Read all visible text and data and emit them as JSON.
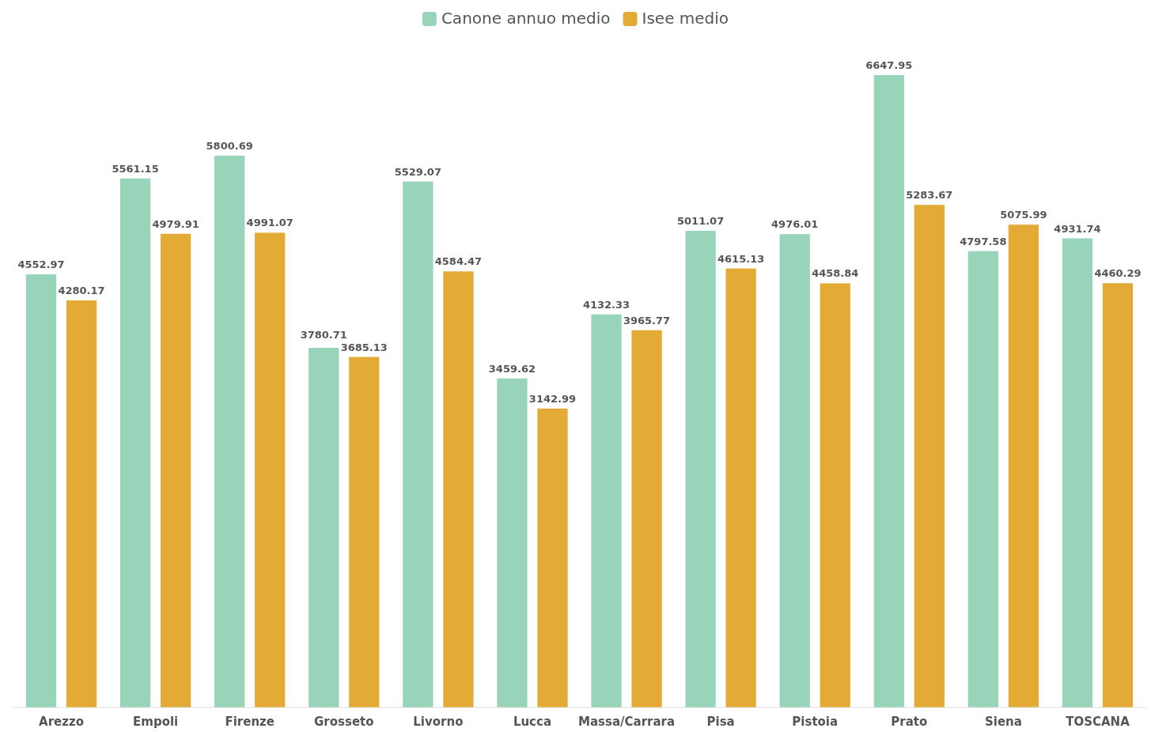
{
  "chart_data": {
    "type": "bar",
    "categories": [
      "Arezzo",
      "Empoli",
      "Firenze",
      "Grosseto",
      "Livorno",
      "Lucca",
      "Massa/Carrara",
      "Pisa",
      "Pistoia",
      "Prato",
      "Siena",
      "TOSCANA"
    ],
    "series": [
      {
        "name": "Canone annuo medio",
        "color": "#98d4b9",
        "values": [
          4552.97,
          5561.15,
          5800.69,
          3780.71,
          5529.07,
          3459.62,
          4132.33,
          5011.07,
          4976.01,
          6647.95,
          4797.58,
          4931.74
        ]
      },
      {
        "name": "Isee medio",
        "color": "#e3ab36",
        "values": [
          4280.17,
          4979.91,
          4991.07,
          3685.13,
          4584.47,
          3142.99,
          3965.77,
          4615.13,
          4458.84,
          5283.67,
          5075.99,
          4460.29
        ]
      }
    ],
    "relative": false,
    "data_labels": true,
    "legend": "top",
    "grid": false
  }
}
